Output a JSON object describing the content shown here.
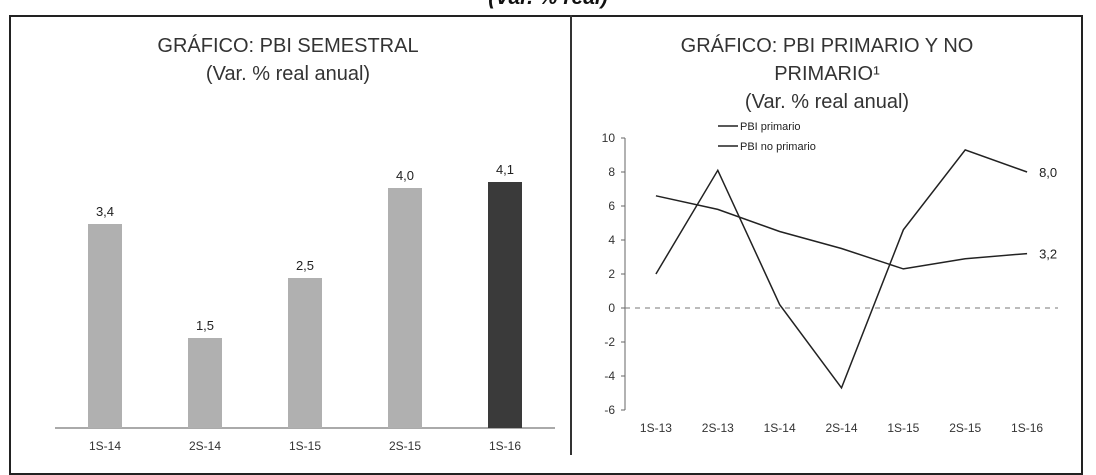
{
  "page_title": "(Var. % real)",
  "chart_data": [
    {
      "type": "bar",
      "title_lines": [
        "GRÁFICO: PBI SEMESTRAL",
        "(Var. % real anual)"
      ],
      "categories": [
        "1S-14",
        "2S-14",
        "1S-15",
        "2S-15",
        "1S-16"
      ],
      "values": [
        3.4,
        1.5,
        2.5,
        4.0,
        4.1
      ],
      "labels": [
        "3,4",
        "1,5",
        "2,5",
        "4,0",
        "4,1"
      ],
      "colors": [
        "#b0b0b0",
        "#b0b0b0",
        "#b0b0b0",
        "#b0b0b0",
        "#3a3a3a"
      ],
      "ylim": [
        0,
        4.8
      ],
      "grid": false,
      "legend": false
    },
    {
      "type": "line",
      "title_lines": [
        "GRÁFICO: PBI PRIMARIO Y NO",
        "PRIMARIO¹",
        "(Var. % real anual)"
      ],
      "x": [
        "1S-13",
        "2S-13",
        "1S-14",
        "2S-14",
        "1S-15",
        "2S-15",
        "1S-16"
      ],
      "series": [
        {
          "name": "PBI primario",
          "values": [
            2.0,
            8.1,
            0.2,
            -4.7,
            4.6,
            9.3,
            8.0
          ],
          "end_label": "8,0"
        },
        {
          "name": "PBI no primario",
          "values": [
            6.6,
            5.8,
            4.5,
            3.5,
            2.3,
            2.9,
            3.2
          ],
          "end_label": "3,2"
        }
      ],
      "yticks": [
        "10",
        "8",
        "6",
        "4",
        "2",
        "0",
        "-2",
        "-4",
        "-6"
      ],
      "ytick_values": [
        10,
        8,
        6,
        4,
        2,
        0,
        -2,
        -4,
        -6
      ],
      "ylim": [
        -6,
        10
      ],
      "legend_position": "top-left",
      "grid": false
    }
  ]
}
